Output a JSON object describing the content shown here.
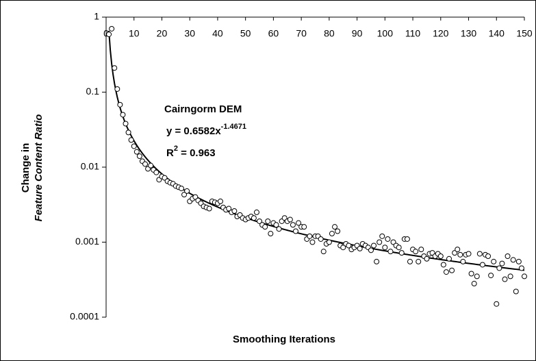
{
  "chart_data": {
    "type": "scatter",
    "xlabel": "Smoothing Iterations",
    "ylabel": [
      "Change in",
      "Feature Content Ratio"
    ],
    "annotations": {
      "title": "Cairngorm DEM",
      "equation": {
        "text": "y = 0.6582x",
        "sup": "-1.4671"
      },
      "r2": {
        "text": "R",
        "sup": "2",
        "rest": " = 0.963"
      }
    },
    "fit": {
      "a": 0.6582,
      "b": -1.4671
    },
    "log_y": true,
    "color": "#000000",
    "xlim": [
      0,
      150
    ],
    "ylim": [
      0.0001,
      1
    ],
    "xticks": [
      0,
      10,
      20,
      30,
      40,
      50,
      60,
      70,
      80,
      90,
      100,
      110,
      120,
      130,
      140,
      150
    ],
    "yticks": [
      1,
      0.1,
      0.01,
      0.001,
      0.0001
    ],
    "x": [
      1,
      2,
      3,
      4,
      5,
      6,
      7,
      8,
      9,
      10,
      11,
      12,
      13,
      14,
      15,
      16,
      17,
      18,
      19,
      20,
      21,
      22,
      23,
      24,
      25,
      26,
      27,
      28,
      29,
      30,
      31,
      32,
      33,
      34,
      35,
      36,
      37,
      38,
      39,
      40,
      41,
      42,
      43,
      44,
      45,
      46,
      47,
      48,
      49,
      50,
      51,
      52,
      53,
      54,
      55,
      56,
      57,
      58,
      59,
      60,
      61,
      62,
      63,
      64,
      65,
      66,
      67,
      68,
      69,
      70,
      71,
      72,
      73,
      74,
      75,
      76,
      77,
      78,
      79,
      80,
      81,
      82,
      83,
      84,
      85,
      86,
      87,
      88,
      89,
      90,
      91,
      92,
      93,
      94,
      95,
      96,
      97,
      98,
      99,
      100,
      101,
      102,
      103,
      104,
      105,
      106,
      107,
      108,
      109,
      110,
      111,
      112,
      113,
      114,
      115,
      116,
      117,
      118,
      119,
      120,
      121,
      122,
      123,
      124,
      125,
      126,
      127,
      128,
      129,
      130,
      131,
      132,
      133,
      134,
      135,
      136,
      137,
      138,
      139,
      140,
      141,
      142,
      143,
      144,
      145,
      146,
      147,
      148,
      149,
      150
    ],
    "values": [
      0.59,
      0.7,
      0.21,
      0.11,
      0.068,
      0.05,
      0.038,
      0.029,
      0.023,
      0.019,
      0.016,
      0.014,
      0.012,
      0.011,
      0.0095,
      0.0105,
      0.0092,
      0.0085,
      0.0068,
      0.0075,
      0.0072,
      0.0065,
      0.0062,
      0.006,
      0.0056,
      0.0054,
      0.0052,
      0.0043,
      0.0048,
      0.0035,
      0.0038,
      0.004,
      0.0036,
      0.0033,
      0.003,
      0.0029,
      0.0028,
      0.0035,
      0.0034,
      0.0033,
      0.0035,
      0.0029,
      0.0027,
      0.0028,
      0.0025,
      0.0026,
      0.0022,
      0.0023,
      0.0021,
      0.002,
      0.0021,
      0.0022,
      0.0021,
      0.0025,
      0.0019,
      0.0017,
      0.0016,
      0.0019,
      0.0013,
      0.0018,
      0.0017,
      0.0015,
      0.0019,
      0.0021,
      0.0019,
      0.002,
      0.0017,
      0.0014,
      0.0018,
      0.0016,
      0.0016,
      0.0011,
      0.0012,
      0.001,
      0.0012,
      0.0012,
      0.0011,
      0.00075,
      0.00095,
      0.001,
      0.0013,
      0.0016,
      0.0014,
      0.0009,
      0.00085,
      0.00095,
      0.0009,
      0.0008,
      0.00085,
      0.0009,
      0.00082,
      0.00095,
      0.0009,
      0.00085,
      0.00078,
      0.0009,
      0.00055,
      0.001,
      0.0012,
      0.00085,
      0.0011,
      0.00075,
      0.001,
      0.0009,
      0.00085,
      0.00072,
      0.0011,
      0.0011,
      0.00055,
      0.0008,
      0.00075,
      0.00055,
      0.0008,
      0.00065,
      0.0006,
      0.0007,
      0.00072,
      0.00065,
      0.0007,
      0.00065,
      0.0005,
      0.0004,
      0.0006,
      0.00042,
      0.00072,
      0.0008,
      0.00068,
      0.00055,
      0.00068,
      0.0007,
      0.00038,
      0.00028,
      0.00035,
      0.0007,
      0.0005,
      0.00068,
      0.00065,
      0.00036,
      0.00055,
      0.00015,
      0.00045,
      0.00052,
      0.00032,
      0.00065,
      0.00035,
      0.00058,
      0.00022,
      0.00055,
      0.00045,
      0.00035
    ]
  }
}
